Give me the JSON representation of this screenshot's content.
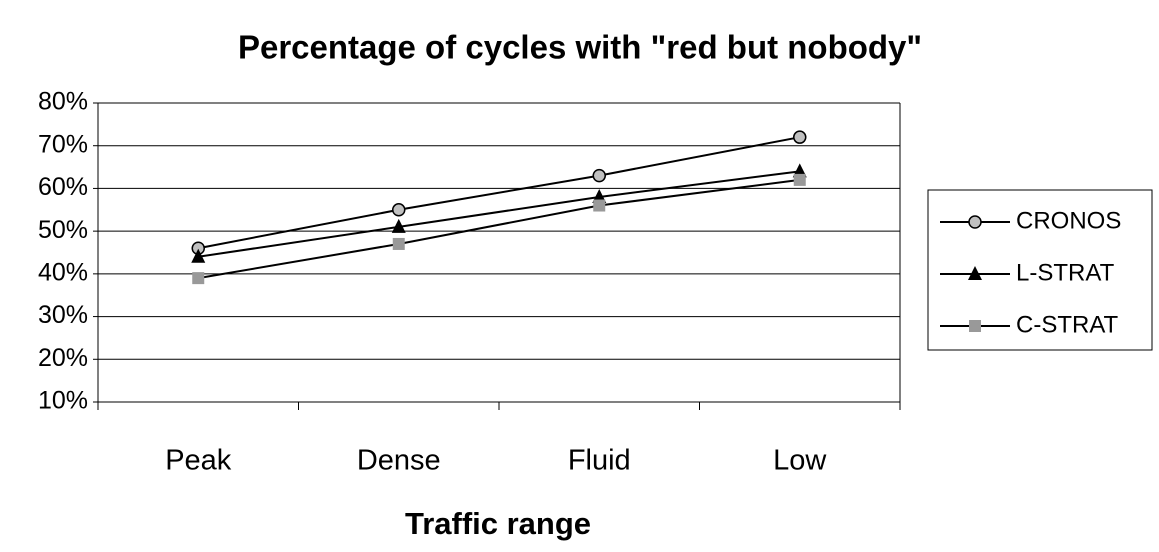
{
  "chart_data": {
    "type": "line",
    "title": "Percentage of cycles with \"red but nobody\"",
    "x_label": "Traffic range",
    "categories": [
      "Peak",
      "Dense",
      "Fluid",
      "Low"
    ],
    "series": [
      {
        "name": "CRONOS",
        "color": "#000000",
        "marker": "circle",
        "marker_color": "#c0c0c0",
        "values": [
          46,
          55,
          63,
          72
        ]
      },
      {
        "name": "L-STRAT",
        "color": "#000000",
        "marker": "triangle",
        "marker_color": "#000000",
        "values": [
          44,
          51,
          58,
          64
        ]
      },
      {
        "name": "C-STRAT",
        "color": "#000000",
        "marker": "square",
        "marker_color": "#999999",
        "values": [
          39,
          47,
          56,
          62
        ]
      }
    ],
    "ylim": [
      10,
      80
    ],
    "yticks": [
      {
        "value": 10,
        "label": "10%"
      },
      {
        "value": 20,
        "label": "20%"
      },
      {
        "value": 30,
        "label": "30%"
      },
      {
        "value": 40,
        "label": "40%"
      },
      {
        "value": 50,
        "label": "50%"
      },
      {
        "value": 60,
        "label": "60%"
      },
      {
        "value": 70,
        "label": "70%"
      },
      {
        "value": 80,
        "label": "80%"
      }
    ],
    "grid": true,
    "legend": "right"
  }
}
